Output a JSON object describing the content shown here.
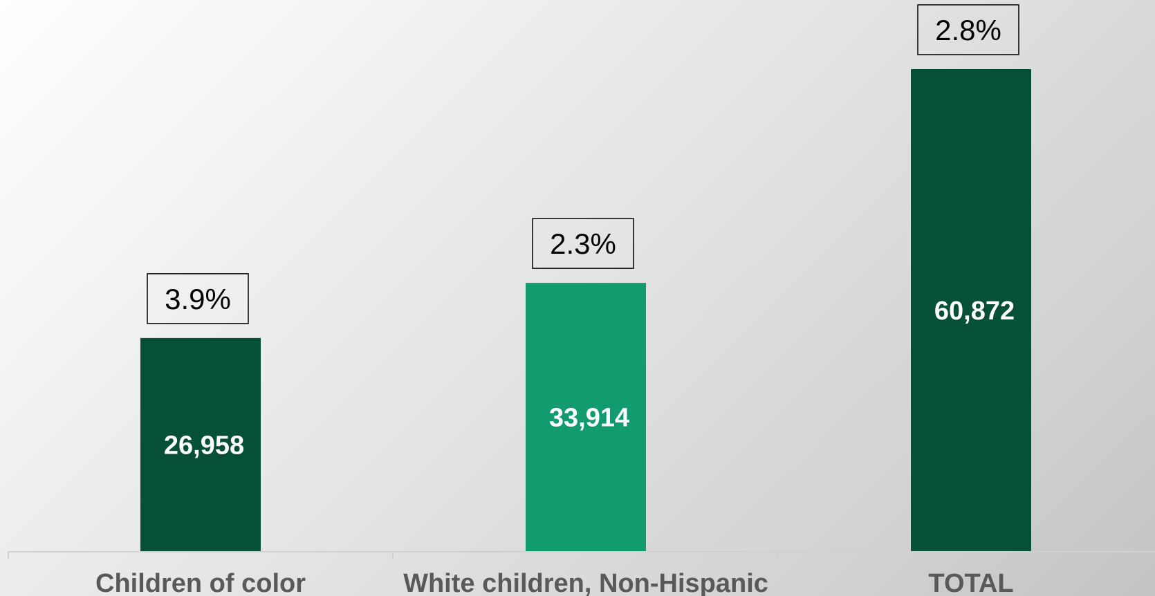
{
  "chart_data": {
    "type": "bar",
    "categories": [
      "Children of color",
      "White children, Non-Hispanic",
      "TOTAL"
    ],
    "values": [
      26958,
      33914,
      60872
    ],
    "value_labels": [
      "26,958",
      "33,914",
      "60,872"
    ],
    "callouts": [
      "3.9%",
      "2.3%",
      "2.8%"
    ],
    "bar_colors": [
      "#075038",
      "#129b6e",
      "#075038"
    ],
    "ylim": [
      0,
      60872
    ],
    "grid": false,
    "legend": "none",
    "title": "",
    "xlabel": "",
    "ylabel": ""
  },
  "colors": {
    "dark_green": "#075038",
    "light_green": "#129b6e",
    "axis": "#d0d0d0",
    "category_text": "#595959"
  }
}
